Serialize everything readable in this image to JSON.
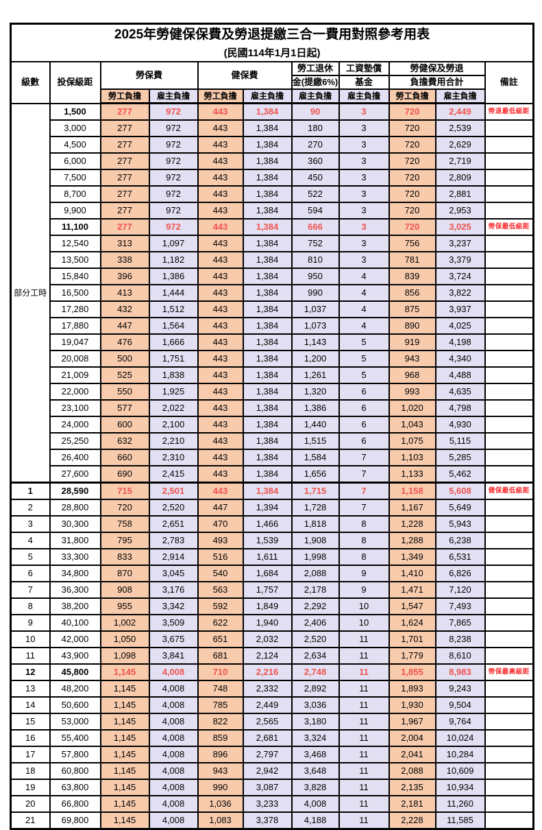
{
  "title": "2025年勞健保保費及勞退提繳三合一費用對照參考用表",
  "subtitle": "(民國114年1月1日起)",
  "columns": {
    "level": "級數",
    "bracket": "投保級距",
    "labor": "勞保費",
    "health": "健保費",
    "pension_l1": "勞工退休",
    "pension_l2": "金(提繳6%)",
    "fund_l1": "工資墊償",
    "fund_l2": "基金",
    "total_l1": "勞健保及勞退",
    "total_l2": "負擔費用合計",
    "remark": "備註",
    "employee_share": "勞工負擔",
    "employer_share": "雇主負擔"
  },
  "colors": {
    "employee_bg": "#f8cbad",
    "employer_bg": "#e2e0f2",
    "highlight_text": "#ef5350",
    "remark_text": "#fb2d2f",
    "border": "#000000"
  },
  "part_time": {
    "label": "部分工時",
    "rows": [
      {
        "bracket": "1,500",
        "values": [
          "277",
          "972",
          "443",
          "1,384",
          "90",
          "3",
          "720",
          "2,449"
        ],
        "remark": "勞退最低級距",
        "highlight": true
      },
      {
        "bracket": "3,000",
        "values": [
          "277",
          "972",
          "443",
          "1,384",
          "180",
          "3",
          "720",
          "2,539"
        ],
        "remark": ""
      },
      {
        "bracket": "4,500",
        "values": [
          "277",
          "972",
          "443",
          "1,384",
          "270",
          "3",
          "720",
          "2,629"
        ],
        "remark": ""
      },
      {
        "bracket": "6,000",
        "values": [
          "277",
          "972",
          "443",
          "1,384",
          "360",
          "3",
          "720",
          "2,719"
        ],
        "remark": ""
      },
      {
        "bracket": "7,500",
        "values": [
          "277",
          "972",
          "443",
          "1,384",
          "450",
          "3",
          "720",
          "2,809"
        ],
        "remark": ""
      },
      {
        "bracket": "8,700",
        "values": [
          "277",
          "972",
          "443",
          "1,384",
          "522",
          "3",
          "720",
          "2,881"
        ],
        "remark": ""
      },
      {
        "bracket": "9,900",
        "values": [
          "277",
          "972",
          "443",
          "1,384",
          "594",
          "3",
          "720",
          "2,953"
        ],
        "remark": ""
      },
      {
        "bracket": "11,100",
        "values": [
          "277",
          "972",
          "443",
          "1,384",
          "666",
          "3",
          "720",
          "3,025"
        ],
        "remark": "勞保最低級距",
        "highlight": true
      },
      {
        "bracket": "12,540",
        "values": [
          "313",
          "1,097",
          "443",
          "1,384",
          "752",
          "3",
          "756",
          "3,237"
        ],
        "remark": ""
      },
      {
        "bracket": "13,500",
        "values": [
          "338",
          "1,182",
          "443",
          "1,384",
          "810",
          "3",
          "781",
          "3,379"
        ],
        "remark": ""
      },
      {
        "bracket": "15,840",
        "values": [
          "396",
          "1,386",
          "443",
          "1,384",
          "950",
          "4",
          "839",
          "3,724"
        ],
        "remark": ""
      },
      {
        "bracket": "16,500",
        "values": [
          "413",
          "1,444",
          "443",
          "1,384",
          "990",
          "4",
          "856",
          "3,822"
        ],
        "remark": ""
      },
      {
        "bracket": "17,280",
        "values": [
          "432",
          "1,512",
          "443",
          "1,384",
          "1,037",
          "4",
          "875",
          "3,937"
        ],
        "remark": ""
      },
      {
        "bracket": "17,880",
        "values": [
          "447",
          "1,564",
          "443",
          "1,384",
          "1,073",
          "4",
          "890",
          "4,025"
        ],
        "remark": ""
      },
      {
        "bracket": "19,047",
        "values": [
          "476",
          "1,666",
          "443",
          "1,384",
          "1,143",
          "5",
          "919",
          "4,198"
        ],
        "remark": ""
      },
      {
        "bracket": "20,008",
        "values": [
          "500",
          "1,751",
          "443",
          "1,384",
          "1,200",
          "5",
          "943",
          "4,340"
        ],
        "remark": ""
      },
      {
        "bracket": "21,009",
        "values": [
          "525",
          "1,838",
          "443",
          "1,384",
          "1,261",
          "5",
          "968",
          "4,488"
        ],
        "remark": ""
      },
      {
        "bracket": "22,000",
        "values": [
          "550",
          "1,925",
          "443",
          "1,384",
          "1,320",
          "6",
          "993",
          "4,635"
        ],
        "remark": ""
      },
      {
        "bracket": "23,100",
        "values": [
          "577",
          "2,022",
          "443",
          "1,384",
          "1,386",
          "6",
          "1,020",
          "4,798"
        ],
        "remark": ""
      },
      {
        "bracket": "24,000",
        "values": [
          "600",
          "2,100",
          "443",
          "1,384",
          "1,440",
          "6",
          "1,043",
          "4,930"
        ],
        "remark": ""
      },
      {
        "bracket": "25,250",
        "values": [
          "632",
          "2,210",
          "443",
          "1,384",
          "1,515",
          "6",
          "1,075",
          "5,115"
        ],
        "remark": ""
      },
      {
        "bracket": "26,400",
        "values": [
          "660",
          "2,310",
          "443",
          "1,384",
          "1,584",
          "7",
          "1,103",
          "5,285"
        ],
        "remark": ""
      },
      {
        "bracket": "27,600",
        "values": [
          "690",
          "2,415",
          "443",
          "1,384",
          "1,656",
          "7",
          "1,133",
          "5,462"
        ],
        "remark": ""
      }
    ]
  },
  "levels": {
    "rows": [
      {
        "level": "1",
        "bracket": "28,590",
        "values": [
          "715",
          "2,501",
          "443",
          "1,384",
          "1,715",
          "7",
          "1,158",
          "5,608"
        ],
        "remark": "健保最低級距",
        "highlight": true
      },
      {
        "level": "2",
        "bracket": "28,800",
        "values": [
          "720",
          "2,520",
          "447",
          "1,394",
          "1,728",
          "7",
          "1,167",
          "5,649"
        ],
        "remark": ""
      },
      {
        "level": "3",
        "bracket": "30,300",
        "values": [
          "758",
          "2,651",
          "470",
          "1,466",
          "1,818",
          "8",
          "1,228",
          "5,943"
        ],
        "remark": ""
      },
      {
        "level": "4",
        "bracket": "31,800",
        "values": [
          "795",
          "2,783",
          "493",
          "1,539",
          "1,908",
          "8",
          "1,288",
          "6,238"
        ],
        "remark": ""
      },
      {
        "level": "5",
        "bracket": "33,300",
        "values": [
          "833",
          "2,914",
          "516",
          "1,611",
          "1,998",
          "8",
          "1,349",
          "6,531"
        ],
        "remark": ""
      },
      {
        "level": "6",
        "bracket": "34,800",
        "values": [
          "870",
          "3,045",
          "540",
          "1,684",
          "2,088",
          "9",
          "1,410",
          "6,826"
        ],
        "remark": ""
      },
      {
        "level": "7",
        "bracket": "36,300",
        "values": [
          "908",
          "3,176",
          "563",
          "1,757",
          "2,178",
          "9",
          "1,471",
          "7,120"
        ],
        "remark": ""
      },
      {
        "level": "8",
        "bracket": "38,200",
        "values": [
          "955",
          "3,342",
          "592",
          "1,849",
          "2,292",
          "10",
          "1,547",
          "7,493"
        ],
        "remark": ""
      },
      {
        "level": "9",
        "bracket": "40,100",
        "values": [
          "1,002",
          "3,509",
          "622",
          "1,940",
          "2,406",
          "10",
          "1,624",
          "7,865"
        ],
        "remark": ""
      },
      {
        "level": "10",
        "bracket": "42,000",
        "values": [
          "1,050",
          "3,675",
          "651",
          "2,032",
          "2,520",
          "11",
          "1,701",
          "8,238"
        ],
        "remark": ""
      },
      {
        "level": "11",
        "bracket": "43,900",
        "values": [
          "1,098",
          "3,841",
          "681",
          "2,124",
          "2,634",
          "11",
          "1,779",
          "8,610"
        ],
        "remark": ""
      },
      {
        "level": "12",
        "bracket": "45,800",
        "values": [
          "1,145",
          "4,008",
          "710",
          "2,216",
          "2,748",
          "11",
          "1,855",
          "8,983"
        ],
        "remark": "勞保最高級距",
        "highlight": true
      },
      {
        "level": "13",
        "bracket": "48,200",
        "values": [
          "1,145",
          "4,008",
          "748",
          "2,332",
          "2,892",
          "11",
          "1,893",
          "9,243"
        ],
        "remark": ""
      },
      {
        "level": "14",
        "bracket": "50,600",
        "values": [
          "1,145",
          "4,008",
          "785",
          "2,449",
          "3,036",
          "11",
          "1,930",
          "9,504"
        ],
        "remark": ""
      },
      {
        "level": "15",
        "bracket": "53,000",
        "values": [
          "1,145",
          "4,008",
          "822",
          "2,565",
          "3,180",
          "11",
          "1,967",
          "9,764"
        ],
        "remark": ""
      },
      {
        "level": "16",
        "bracket": "55,400",
        "values": [
          "1,145",
          "4,008",
          "859",
          "2,681",
          "3,324",
          "11",
          "2,004",
          "10,024"
        ],
        "remark": ""
      },
      {
        "level": "17",
        "bracket": "57,800",
        "values": [
          "1,145",
          "4,008",
          "896",
          "2,797",
          "3,468",
          "11",
          "2,041",
          "10,284"
        ],
        "remark": ""
      },
      {
        "level": "18",
        "bracket": "60,800",
        "values": [
          "1,145",
          "4,008",
          "943",
          "2,942",
          "3,648",
          "11",
          "2,088",
          "10,609"
        ],
        "remark": ""
      },
      {
        "level": "19",
        "bracket": "63,800",
        "values": [
          "1,145",
          "4,008",
          "990",
          "3,087",
          "3,828",
          "11",
          "2,135",
          "10,934"
        ],
        "remark": ""
      },
      {
        "level": "20",
        "bracket": "66,800",
        "values": [
          "1,145",
          "4,008",
          "1,036",
          "3,233",
          "4,008",
          "11",
          "2,181",
          "11,260"
        ],
        "remark": ""
      },
      {
        "level": "21",
        "bracket": "69,800",
        "values": [
          "1,145",
          "4,008",
          "1,083",
          "3,378",
          "4,188",
          "11",
          "2,228",
          "11,585"
        ],
        "remark": ""
      }
    ]
  }
}
